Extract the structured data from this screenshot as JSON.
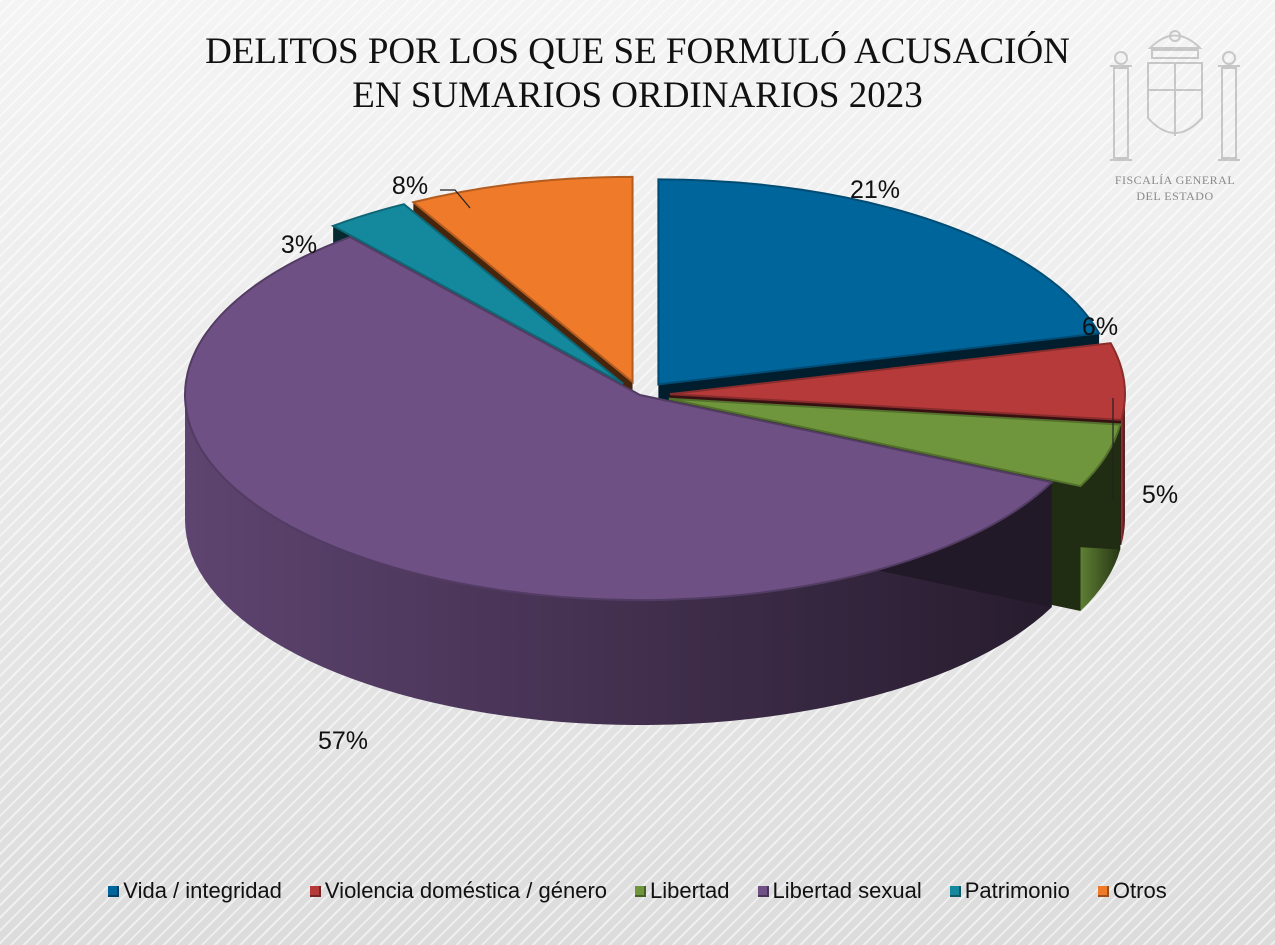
{
  "seal": {
    "line1": "FISCALÍA GENERAL",
    "line2": "DEL ESTADO"
  },
  "chart_data": {
    "type": "pie",
    "title_line1": "DELITOS POR LOS QUE SE FORMULÓ ACUSACIÓN",
    "title_line2": "EN SUMARIOS ORDINARIOS 2023",
    "legend_position": "bottom",
    "slices": [
      {
        "name": "Vida / integridad",
        "value": 21,
        "label": "21%",
        "color": "#00659a"
      },
      {
        "name": "Violencia doméstica / género",
        "value": 6,
        "label": "6%",
        "color": "#b63a3a"
      },
      {
        "name": "Libertad",
        "value": 5,
        "label": "5%",
        "color": "#6f963c"
      },
      {
        "name": "Libertad sexual",
        "value": 57,
        "label": "57%",
        "color": "#6e5084"
      },
      {
        "name": "Patrimonio",
        "value": 3,
        "label": "3%",
        "color": "#14899d"
      },
      {
        "name": "Otros",
        "value": 8,
        "label": "8%",
        "color": "#ee7a2a"
      }
    ]
  }
}
